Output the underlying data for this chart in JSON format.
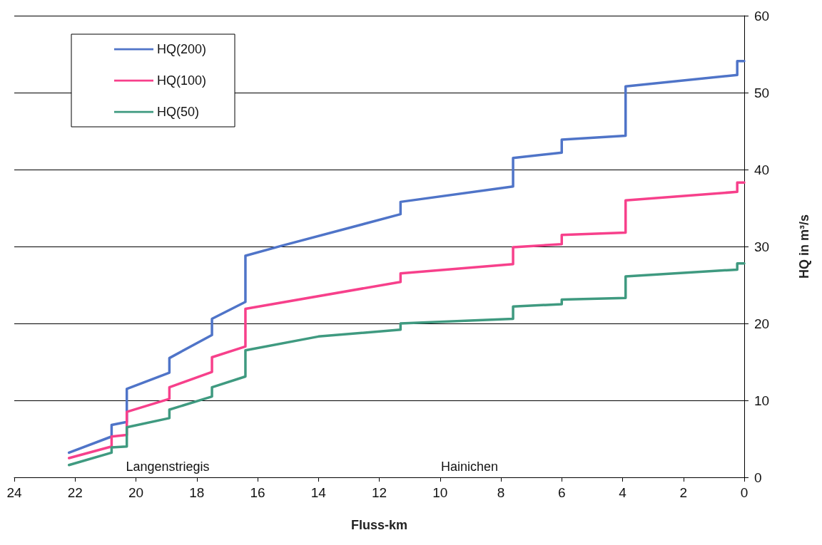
{
  "chart_data": {
    "type": "line",
    "xlabel": "Fluss-km",
    "ylabel": "HQ in m³/s",
    "xlim": [
      24,
      0
    ],
    "xticks": [
      24,
      22,
      20,
      18,
      16,
      14,
      12,
      10,
      8,
      6,
      4,
      2,
      0
    ],
    "ylim": [
      0,
      60
    ],
    "yticks": [
      0,
      10,
      20,
      30,
      40,
      50,
      60
    ],
    "grid": "y",
    "legend": "top left",
    "marker": "none",
    "line_style": "solid",
    "annotations": [
      "Langenstriegis",
      "Hainichen"
    ],
    "series": [
      {
        "name": "HQ(200)",
        "color": "#4f74c8",
        "x": [
          22.2,
          20.8,
          20.8,
          20.3,
          20.3,
          18.9,
          18.9,
          17.5,
          17.5,
          16.4,
          16.4,
          15.2,
          11.3,
          11.3,
          7.6,
          7.6,
          6.0,
          6.0,
          3.9,
          3.9,
          0.23,
          0.23,
          0
        ],
        "values": [
          3.2,
          5.3,
          6.8,
          7.2,
          11.5,
          13.6,
          15.5,
          18.5,
          20.6,
          22.8,
          28.8,
          30.1,
          34.2,
          35.8,
          37.8,
          41.5,
          42.2,
          43.9,
          44.4,
          50.8,
          52.3,
          54.1,
          54.1
        ]
      },
      {
        "name": "HQ(100)",
        "color": "#f7408b",
        "x": [
          22.2,
          20.8,
          20.8,
          20.3,
          20.3,
          18.9,
          18.9,
          17.5,
          17.5,
          16.4,
          16.4,
          11.3,
          11.3,
          7.6,
          7.6,
          6.0,
          6.0,
          3.9,
          3.9,
          0.23,
          0.23,
          0
        ],
        "values": [
          2.5,
          4.0,
          5.3,
          5.5,
          8.5,
          10.2,
          11.7,
          13.7,
          15.6,
          17.0,
          21.9,
          25.4,
          26.5,
          27.7,
          29.9,
          30.3,
          31.5,
          31.8,
          36.0,
          37.1,
          38.3,
          38.3
        ]
      },
      {
        "name": "HQ(50)",
        "color": "#3f9a80",
        "x": [
          22.2,
          20.8,
          20.8,
          20.3,
          20.3,
          18.9,
          18.9,
          17.5,
          17.5,
          16.4,
          16.4,
          14.0,
          11.3,
          11.3,
          7.6,
          7.6,
          6.0,
          6.0,
          3.9,
          3.9,
          0.23,
          0.23,
          0
        ],
        "values": [
          1.6,
          3.2,
          3.9,
          4.0,
          6.5,
          7.7,
          8.8,
          10.5,
          11.7,
          13.1,
          16.5,
          18.3,
          19.2,
          20.0,
          20.6,
          22.2,
          22.5,
          23.1,
          23.3,
          26.1,
          27.0,
          27.8,
          27.8
        ]
      }
    ]
  }
}
